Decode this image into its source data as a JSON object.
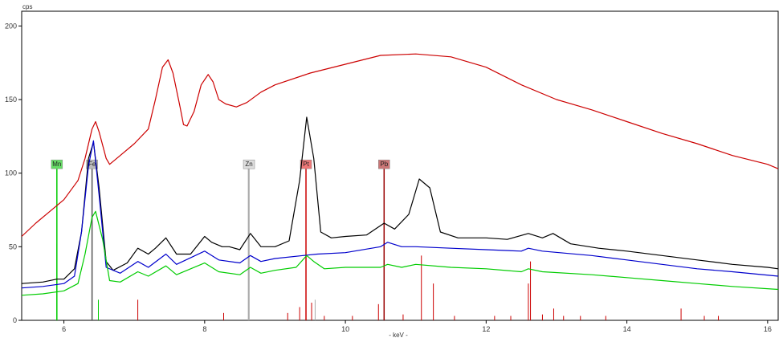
{
  "chart_data": {
    "type": "line",
    "ylabel": "cps",
    "xlabel": "- keV -",
    "xlim": [
      5.4,
      16.15
    ],
    "ylim": [
      0,
      210
    ],
    "x_ticks": [
      6,
      8,
      10,
      12,
      14,
      16
    ],
    "x_tick_labels": [
      "6",
      "8",
      "10",
      "12",
      "14",
      "16"
    ],
    "y_ticks": [
      0,
      50,
      100,
      150,
      200
    ],
    "y_tick_labels": [
      "0",
      "50",
      "100",
      "150",
      "200"
    ],
    "grid": false,
    "series": [
      {
        "color": "#cc0000",
        "points": [
          [
            5.4,
            57
          ],
          [
            5.6,
            66
          ],
          [
            5.8,
            74
          ],
          [
            6.0,
            82
          ],
          [
            6.2,
            95
          ],
          [
            6.3,
            110
          ],
          [
            6.4,
            130
          ],
          [
            6.45,
            135
          ],
          [
            6.5,
            128
          ],
          [
            6.6,
            110
          ],
          [
            6.65,
            106
          ],
          [
            6.8,
            112
          ],
          [
            7.0,
            120
          ],
          [
            7.2,
            130
          ],
          [
            7.3,
            150
          ],
          [
            7.4,
            172
          ],
          [
            7.48,
            177
          ],
          [
            7.55,
            168
          ],
          [
            7.65,
            145
          ],
          [
            7.7,
            133
          ],
          [
            7.75,
            132
          ],
          [
            7.85,
            142
          ],
          [
            7.95,
            160
          ],
          [
            8.05,
            167
          ],
          [
            8.12,
            162
          ],
          [
            8.2,
            150
          ],
          [
            8.3,
            147
          ],
          [
            8.45,
            145
          ],
          [
            8.6,
            148
          ],
          [
            8.8,
            155
          ],
          [
            9.0,
            160
          ],
          [
            9.5,
            168
          ],
          [
            10.0,
            174
          ],
          [
            10.5,
            180
          ],
          [
            11.0,
            181
          ],
          [
            11.5,
            179
          ],
          [
            12.0,
            172
          ],
          [
            12.5,
            160
          ],
          [
            13.0,
            150
          ],
          [
            13.5,
            143
          ],
          [
            14.0,
            135
          ],
          [
            14.5,
            127
          ],
          [
            15.0,
            120
          ],
          [
            15.5,
            112
          ],
          [
            16.0,
            106
          ],
          [
            16.15,
            103
          ]
        ]
      },
      {
        "color": "#000000",
        "points": [
          [
            5.4,
            25
          ],
          [
            5.7,
            26
          ],
          [
            5.9,
            28
          ],
          [
            6.0,
            28
          ],
          [
            6.15,
            35
          ],
          [
            6.25,
            60
          ],
          [
            6.35,
            110
          ],
          [
            6.42,
            121
          ],
          [
            6.5,
            90
          ],
          [
            6.6,
            40
          ],
          [
            6.7,
            34
          ],
          [
            6.9,
            39
          ],
          [
            7.05,
            49
          ],
          [
            7.2,
            45
          ],
          [
            7.3,
            49
          ],
          [
            7.45,
            56
          ],
          [
            7.6,
            45
          ],
          [
            7.8,
            45
          ],
          [
            8.0,
            57
          ],
          [
            8.1,
            53
          ],
          [
            8.25,
            50
          ],
          [
            8.35,
            50
          ],
          [
            8.5,
            48
          ],
          [
            8.65,
            59
          ],
          [
            8.8,
            50
          ],
          [
            9.0,
            50
          ],
          [
            9.2,
            54
          ],
          [
            9.35,
            95
          ],
          [
            9.45,
            138
          ],
          [
            9.55,
            110
          ],
          [
            9.65,
            60
          ],
          [
            9.8,
            56
          ],
          [
            10.0,
            57
          ],
          [
            10.3,
            58
          ],
          [
            10.55,
            66
          ],
          [
            10.7,
            62
          ],
          [
            10.9,
            72
          ],
          [
            11.05,
            96
          ],
          [
            11.2,
            90
          ],
          [
            11.35,
            60
          ],
          [
            11.6,
            56
          ],
          [
            12.0,
            56
          ],
          [
            12.3,
            55
          ],
          [
            12.6,
            59
          ],
          [
            12.8,
            56
          ],
          [
            12.95,
            59
          ],
          [
            13.2,
            52
          ],
          [
            13.6,
            49
          ],
          [
            14.0,
            47
          ],
          [
            14.5,
            44
          ],
          [
            15.0,
            41
          ],
          [
            15.5,
            38
          ],
          [
            16.0,
            36
          ],
          [
            16.15,
            35
          ]
        ]
      },
      {
        "color": "#0000cc",
        "points": [
          [
            5.4,
            22
          ],
          [
            5.7,
            23
          ],
          [
            6.0,
            25
          ],
          [
            6.15,
            30
          ],
          [
            6.25,
            60
          ],
          [
            6.35,
            105
          ],
          [
            6.42,
            122
          ],
          [
            6.5,
            85
          ],
          [
            6.6,
            36
          ],
          [
            6.8,
            32
          ],
          [
            7.05,
            40
          ],
          [
            7.2,
            36
          ],
          [
            7.45,
            45
          ],
          [
            7.6,
            38
          ],
          [
            8.0,
            47
          ],
          [
            8.2,
            41
          ],
          [
            8.5,
            39
          ],
          [
            8.65,
            44
          ],
          [
            8.8,
            40
          ],
          [
            9.0,
            42
          ],
          [
            9.4,
            44
          ],
          [
            9.6,
            45
          ],
          [
            10.0,
            46
          ],
          [
            10.5,
            50
          ],
          [
            10.6,
            53
          ],
          [
            10.8,
            50
          ],
          [
            11.0,
            50
          ],
          [
            11.5,
            49
          ],
          [
            12.0,
            48
          ],
          [
            12.5,
            47
          ],
          [
            12.6,
            49
          ],
          [
            12.8,
            47
          ],
          [
            13.5,
            44
          ],
          [
            14.0,
            41
          ],
          [
            14.5,
            38
          ],
          [
            15.0,
            35
          ],
          [
            15.5,
            33
          ],
          [
            16.15,
            30
          ]
        ]
      },
      {
        "color": "#00cc00",
        "points": [
          [
            5.4,
            17
          ],
          [
            5.7,
            18
          ],
          [
            6.0,
            20
          ],
          [
            6.2,
            25
          ],
          [
            6.3,
            45
          ],
          [
            6.4,
            70
          ],
          [
            6.45,
            74
          ],
          [
            6.55,
            55
          ],
          [
            6.65,
            27
          ],
          [
            6.8,
            26
          ],
          [
            7.05,
            33
          ],
          [
            7.2,
            30
          ],
          [
            7.45,
            37
          ],
          [
            7.6,
            31
          ],
          [
            8.0,
            39
          ],
          [
            8.2,
            33
          ],
          [
            8.5,
            31
          ],
          [
            8.65,
            36
          ],
          [
            8.8,
            32
          ],
          [
            9.0,
            34
          ],
          [
            9.3,
            36
          ],
          [
            9.45,
            44
          ],
          [
            9.55,
            40
          ],
          [
            9.7,
            35
          ],
          [
            10.0,
            36
          ],
          [
            10.5,
            36
          ],
          [
            10.6,
            38
          ],
          [
            10.8,
            36
          ],
          [
            11.0,
            38
          ],
          [
            11.5,
            36
          ],
          [
            12.0,
            35
          ],
          [
            12.5,
            33
          ],
          [
            12.6,
            35
          ],
          [
            12.8,
            33
          ],
          [
            13.5,
            31
          ],
          [
            14.0,
            29
          ],
          [
            14.5,
            27
          ],
          [
            15.0,
            25
          ],
          [
            15.5,
            23
          ],
          [
            16.15,
            21
          ]
        ]
      }
    ],
    "element_markers": [
      {
        "label": "Mn",
        "x": 5.9,
        "height": 103,
        "color": "#00cc00",
        "label_bg": "#66dd66"
      },
      {
        "label": "Fe",
        "x": 6.4,
        "height": 103,
        "color": "#555555",
        "label_bg": "#bbbbbb"
      },
      {
        "label": "Zn",
        "x": 8.63,
        "height": 103,
        "color": "#aaaaaa",
        "label_bg": "#dddddd"
      },
      {
        "label": "Pt",
        "x": 9.44,
        "height": 103,
        "color": "#cc0000",
        "label_bg": "#ee7777"
      },
      {
        "label": "Pb",
        "x": 10.55,
        "height": 103,
        "color": "#990000",
        "label_bg": "#cc7777"
      }
    ],
    "line_spectra": [
      {
        "color": "#00cc00",
        "lines": [
          [
            5.9,
            52
          ],
          [
            6.49,
            14
          ]
        ]
      },
      {
        "color": "#cc0000",
        "lines": [
          [
            7.05,
            14
          ],
          [
            8.27,
            5
          ],
          [
            9.18,
            5
          ],
          [
            9.35,
            9
          ],
          [
            9.52,
            12
          ],
          [
            9.7,
            3
          ],
          [
            10.1,
            3
          ],
          [
            10.47,
            11
          ],
          [
            10.82,
            4
          ],
          [
            11.08,
            44
          ],
          [
            11.25,
            25
          ],
          [
            11.55,
            3
          ],
          [
            12.12,
            3
          ],
          [
            12.35,
            3
          ],
          [
            12.6,
            25
          ],
          [
            12.63,
            40
          ],
          [
            12.8,
            4
          ],
          [
            12.96,
            8
          ],
          [
            13.1,
            3
          ],
          [
            13.34,
            3
          ],
          [
            13.7,
            3
          ],
          [
            14.77,
            8
          ],
          [
            15.1,
            3
          ],
          [
            15.3,
            3
          ]
        ]
      },
      {
        "color": "#aaaaaa",
        "lines": [
          [
            8.62,
            103
          ],
          [
            9.57,
            14
          ]
        ]
      }
    ]
  }
}
